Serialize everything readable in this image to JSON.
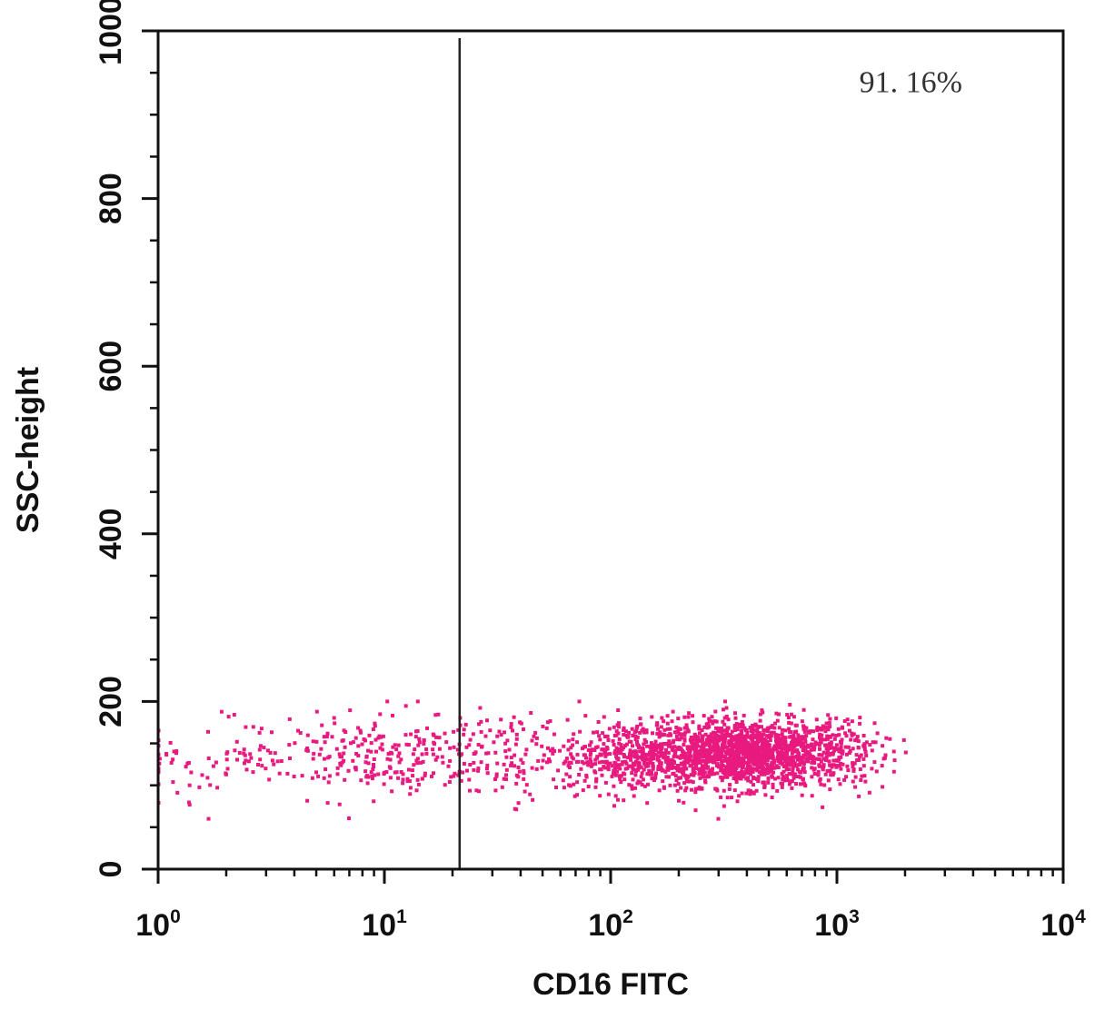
{
  "chart_data": {
    "type": "scatter",
    "title": "",
    "xlabel": "CD16 FITC",
    "ylabel": "SSC-height",
    "x_scale": "log",
    "xlim": [
      1,
      10000
    ],
    "ylim": [
      0,
      1000
    ],
    "x_ticks": [
      {
        "value": 1,
        "base": "10",
        "exp": "0"
      },
      {
        "value": 10,
        "base": "10",
        "exp": "1"
      },
      {
        "value": 100,
        "base": "10",
        "exp": "2"
      },
      {
        "value": 1000,
        "base": "10",
        "exp": "3"
      },
      {
        "value": 10000,
        "base": "10",
        "exp": "4"
      }
    ],
    "y_ticks": [
      {
        "value": 0,
        "label": "0"
      },
      {
        "value": 200,
        "label": "200"
      },
      {
        "value": 400,
        "label": "400"
      },
      {
        "value": 600,
        "label": "600"
      },
      {
        "value": 800,
        "label": "800"
      },
      {
        "value": 1000,
        "label": "1000"
      }
    ],
    "gate": {
      "x": 21.5
    },
    "annotation": {
      "text": "91. 16%",
      "x": 2400,
      "y": 940
    },
    "grid": false,
    "legend": "none",
    "point_color": "#e8197f",
    "point_clusters": [
      {
        "x_center": 400,
        "x_log_sd": 0.22,
        "y_center": 138,
        "y_sd": 20,
        "count": 1500
      },
      {
        "x_center": 130,
        "x_log_sd": 0.16,
        "y_center": 135,
        "y_sd": 22,
        "count": 420
      },
      {
        "x_center": 1100,
        "x_log_sd": 0.1,
        "y_center": 140,
        "y_sd": 22,
        "count": 90
      },
      {
        "x_center": 35,
        "x_log_sd": 0.2,
        "y_center": 135,
        "y_sd": 25,
        "count": 140
      },
      {
        "x_center": 8,
        "x_log_sd": 0.3,
        "y_center": 135,
        "y_sd": 25,
        "count": 260
      },
      {
        "x_center": 1.6,
        "x_log_sd": 0.2,
        "y_center": 128,
        "y_sd": 25,
        "count": 50
      }
    ]
  }
}
